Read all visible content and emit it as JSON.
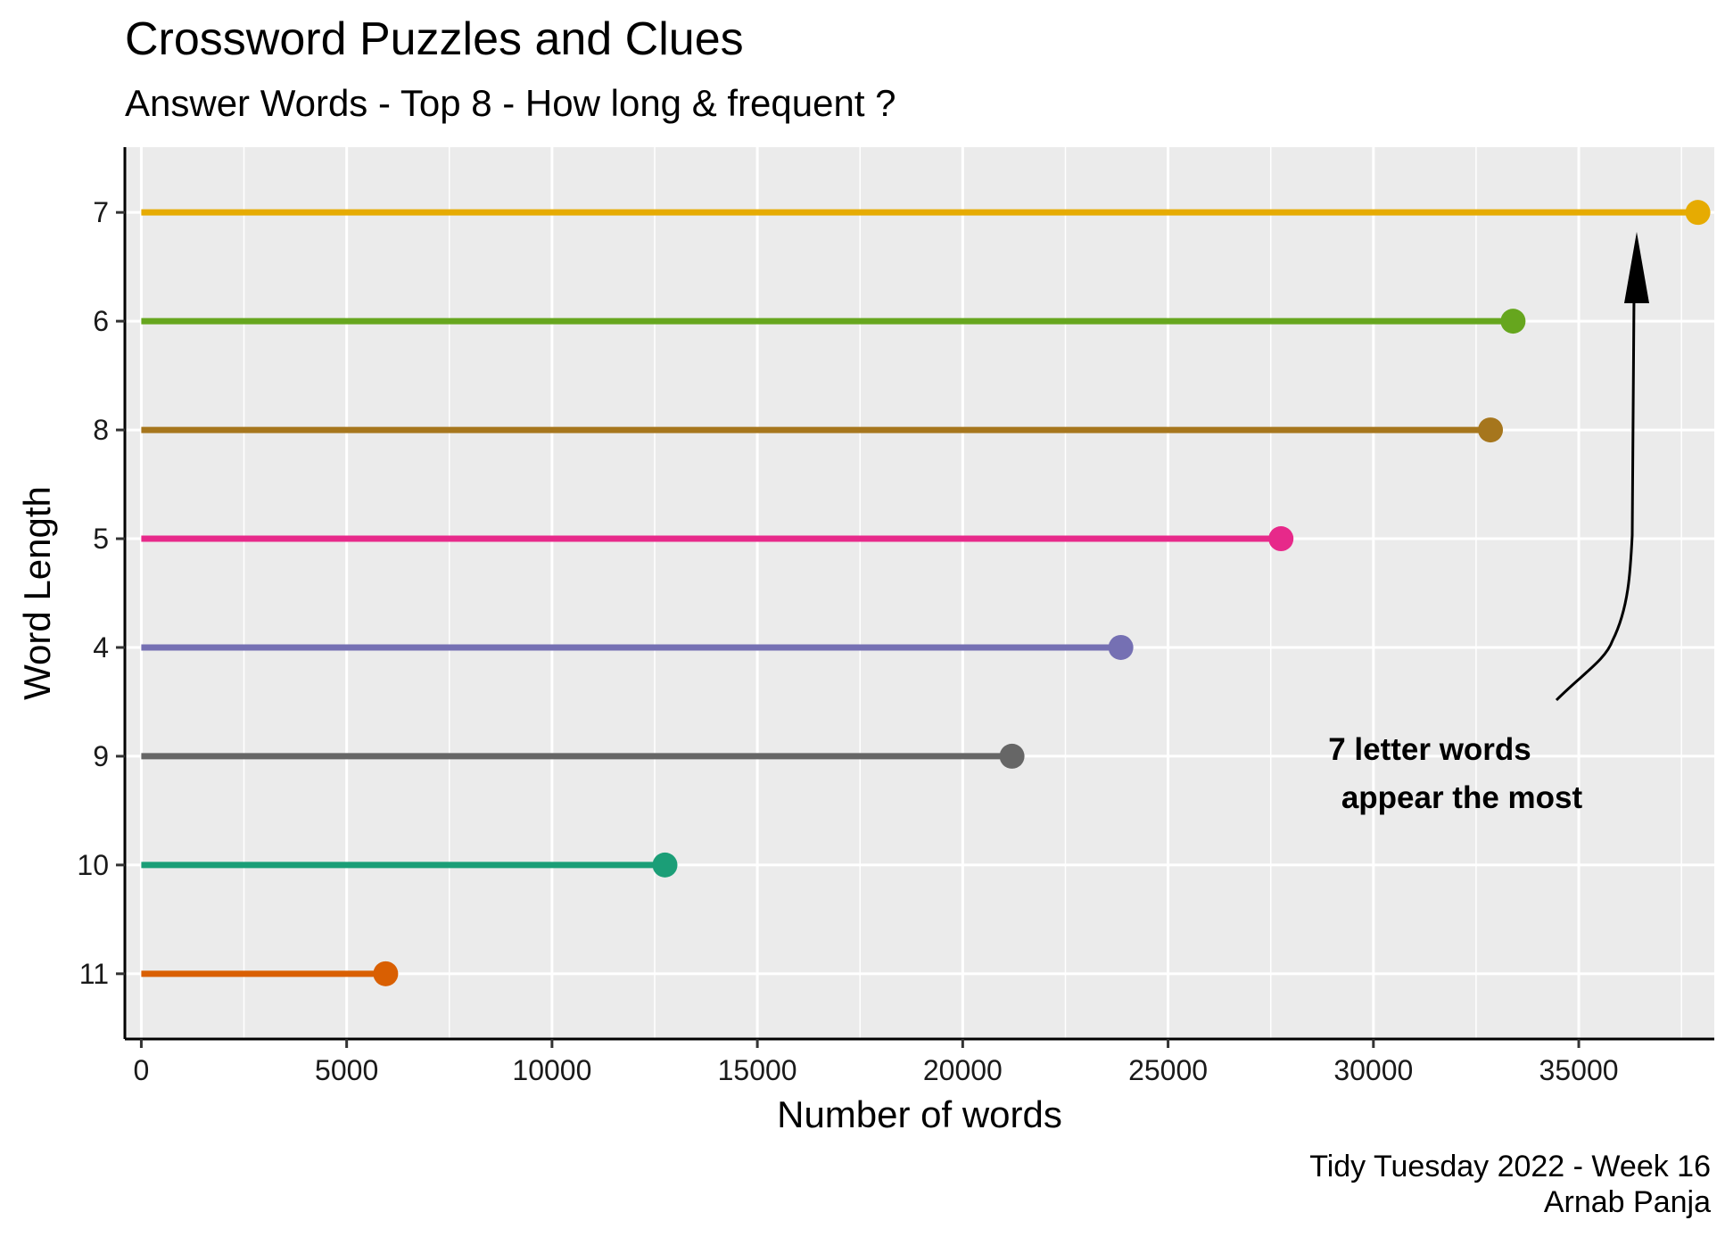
{
  "chart_data": {
    "type": "lollipop",
    "title": "Crossword Puzzles and Clues",
    "subtitle": "Answer Words - Top 8 - How long & frequent ?",
    "xlabel": "Number of words",
    "ylabel": "Word Length",
    "xlim": [
      -400,
      38300
    ],
    "x_ticks": [
      0,
      5000,
      10000,
      15000,
      20000,
      25000,
      30000,
      35000
    ],
    "categories": [
      "7",
      "6",
      "8",
      "5",
      "4",
      "9",
      "10",
      "11"
    ],
    "values": [
      37900,
      33400,
      32850,
      27750,
      23850,
      21200,
      12750,
      5950
    ],
    "colors": [
      "#E6AB02",
      "#66A61E",
      "#A6761D",
      "#E7298A",
      "#7570B3",
      "#666666",
      "#1B9E77",
      "#D95F02"
    ],
    "background": "#EBEBEB",
    "grid": true,
    "legend": "none",
    "annotation": {
      "lines": [
        "7 letter words",
        "appear the most"
      ],
      "arrow_points_to": "7"
    }
  },
  "caption": {
    "line1": "Tidy Tuesday 2022 - Week 16",
    "line2": "Arnab Panja"
  }
}
